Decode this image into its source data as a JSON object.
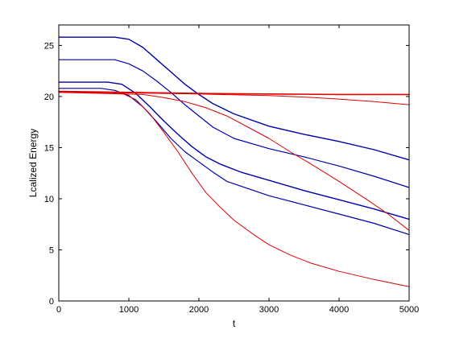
{
  "chart_data": {
    "type": "line",
    "title": "",
    "xlabel": "t",
    "ylabel": "Lcalized Energy",
    "xlim": [
      0,
      5000
    ],
    "ylim": [
      0,
      27
    ],
    "xticks": [
      0,
      1000,
      2000,
      3000,
      4000,
      5000
    ],
    "xtick_labels": [
      "0",
      "1000",
      "2000",
      "3000",
      "4000",
      "5000"
    ],
    "yticks": [
      0,
      5,
      10,
      15,
      20,
      25
    ],
    "ytick_labels": [
      "0",
      "5",
      "10",
      "15",
      "20",
      "25"
    ],
    "grid": false,
    "legend": "none",
    "series": [
      {
        "color": "#0000aa",
        "width": 1.4,
        "x": [
          0,
          800,
          1000,
          1200,
          1400,
          1600,
          1800,
          2000,
          2200,
          2500,
          3000,
          3500,
          4000,
          4500,
          5000
        ],
        "y": [
          25.8,
          25.8,
          25.6,
          24.8,
          23.6,
          22.4,
          21.2,
          20.2,
          19.3,
          18.3,
          17.1,
          16.3,
          15.6,
          14.8,
          13.8
        ]
      },
      {
        "color": "#0000aa",
        "width": 1.2,
        "x": [
          0,
          800,
          1000,
          1200,
          1400,
          1600,
          1800,
          2000,
          2200,
          2500,
          3000,
          3500,
          4000,
          4500,
          5000
        ],
        "y": [
          23.6,
          23.6,
          23.2,
          22.5,
          21.5,
          20.4,
          19.2,
          18.1,
          17.0,
          15.9,
          14.9,
          14.1,
          13.2,
          12.2,
          11.1
        ]
      },
      {
        "color": "#0000aa",
        "width": 1.4,
        "x": [
          0,
          700,
          900,
          1100,
          1300,
          1500,
          1700,
          1900,
          2100,
          2300,
          2600,
          3000,
          3500,
          4000,
          4500,
          5000
        ],
        "y": [
          21.4,
          21.4,
          21.2,
          20.3,
          19.0,
          17.6,
          16.3,
          15.1,
          14.1,
          13.4,
          12.6,
          11.8,
          10.8,
          9.9,
          9.0,
          8.0
        ]
      },
      {
        "color": "#0000aa",
        "width": 1.2,
        "x": [
          0,
          600,
          800,
          1000,
          1200,
          1400,
          1600,
          1800,
          2000,
          2200,
          2400,
          2700,
          3000,
          3500,
          4000,
          4500,
          5000
        ],
        "y": [
          20.8,
          20.8,
          20.6,
          20.1,
          19.0,
          17.5,
          15.9,
          14.6,
          13.6,
          12.6,
          11.7,
          11.0,
          10.3,
          9.4,
          8.5,
          7.6,
          6.5
        ]
      },
      {
        "color": "#dd0000",
        "width": 1.0,
        "x": [
          0,
          700,
          900,
          1100,
          1300,
          1500,
          1700,
          1900,
          2100,
          2300,
          2500,
          2800,
          3000,
          3300,
          3600,
          4000,
          4500,
          5000
        ],
        "y": [
          20.4,
          20.4,
          20.3,
          19.7,
          18.3,
          16.5,
          14.6,
          12.5,
          10.6,
          9.2,
          7.9,
          6.4,
          5.5,
          4.5,
          3.7,
          2.9,
          2.1,
          1.4
        ]
      },
      {
        "color": "#dd0000",
        "width": 1.0,
        "x": [
          0,
          1200,
          1500,
          1800,
          2100,
          2400,
          2700,
          3000,
          3300,
          3600,
          4000,
          4400,
          4700,
          5000
        ],
        "y": [
          20.4,
          20.2,
          19.9,
          19.5,
          18.9,
          18.1,
          17.0,
          15.9,
          14.6,
          13.4,
          11.7,
          9.9,
          8.5,
          6.9
        ]
      },
      {
        "color": "#dd0000",
        "width": 1.6,
        "x": [
          0,
          1000,
          2000,
          3000,
          4000,
          5000
        ],
        "y": [
          20.5,
          20.4,
          20.3,
          20.25,
          20.2,
          20.2
        ]
      },
      {
        "color": "#dd0000",
        "width": 1.0,
        "x": [
          0,
          1000,
          2000,
          3000,
          3500,
          4000,
          4500,
          5000
        ],
        "y": [
          20.4,
          20.35,
          20.25,
          20.1,
          19.95,
          19.75,
          19.5,
          19.2
        ]
      }
    ]
  }
}
